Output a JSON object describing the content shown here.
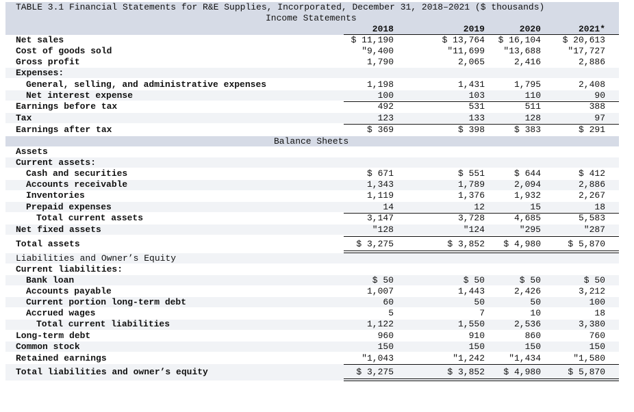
{
  "title": "TABLE 3.1 Financial Statements for R&E Supplies, Incorporated, December 31, 2018–2021 ($ thousands)",
  "income_heading": "Income Statements",
  "balance_heading": "Balance Sheets",
  "years": [
    "2018",
    "2019",
    "2020",
    "2021*"
  ],
  "income": [
    {
      "label": "Net sales",
      "values": [
        "$ 11,190",
        "$ 13,764",
        "$ 16,104",
        "$ 20,613"
      ]
    },
    {
      "label": "Cost of goods sold",
      "values": [
        "\"9,400",
        "\"11,699",
        "\"13,688",
        "\"17,727"
      ]
    },
    {
      "label": "Gross profit",
      "values": [
        "1,790",
        "2,065",
        "2,416",
        "2,886"
      ]
    },
    {
      "label": "Expenses:",
      "values": [
        "",
        "",
        "",
        ""
      ]
    },
    {
      "label": "General, selling, and administrative expenses",
      "values": [
        "1,198",
        "1,431",
        "1,795",
        "2,408"
      ]
    },
    {
      "label": "Net interest expense",
      "values": [
        "100",
        "103",
        "110",
        "90"
      ]
    },
    {
      "label": "Earnings before tax",
      "values": [
        "492",
        "531",
        "511",
        "388"
      ]
    },
    {
      "label": "Tax",
      "values": [
        "123",
        "133",
        "128",
        "97"
      ]
    },
    {
      "label": "Earnings after tax",
      "values": [
        "$ 369",
        "$ 398",
        "$ 383",
        "$ 291"
      ]
    }
  ],
  "assets": [
    {
      "label": "Assets",
      "values": [
        "",
        "",
        "",
        ""
      ]
    },
    {
      "label": "Current assets:",
      "values": [
        "",
        "",
        "",
        ""
      ]
    },
    {
      "label": "Cash and securities",
      "values": [
        "$ 671",
        "$ 551",
        "$ 644",
        "$ 412"
      ]
    },
    {
      "label": "Accounts receivable",
      "values": [
        "1,343",
        "1,789",
        "2,094",
        "2,886"
      ]
    },
    {
      "label": "Inventories",
      "values": [
        "1,119",
        "1,376",
        "1,932",
        "2,267"
      ]
    },
    {
      "label": "Prepaid expenses",
      "values": [
        "14",
        "12",
        "15",
        "18"
      ]
    },
    {
      "label": "Total current assets",
      "values": [
        "3,147",
        "3,728",
        "4,685",
        "5,583"
      ]
    },
    {
      "label": "Net fixed assets",
      "values": [
        "\"128",
        "\"124",
        "\"295",
        "\"287"
      ]
    },
    {
      "label": "Total assets",
      "values": [
        "$ 3,275",
        "$ 3,852",
        "$ 4,980",
        "$ 5,870"
      ]
    }
  ],
  "liabilities": [
    {
      "label": "Liabilities and Owner’s Equity",
      "values": [
        "",
        "",
        "",
        ""
      ]
    },
    {
      "label": "Current liabilities:",
      "values": [
        "",
        "",
        "",
        ""
      ]
    },
    {
      "label": "Bank loan",
      "values": [
        "$ 50",
        "$ 50",
        "$ 50",
        "$ 50"
      ]
    },
    {
      "label": "Accounts payable",
      "values": [
        "1,007",
        "1,443",
        "2,426",
        "3,212"
      ]
    },
    {
      "label": "Current portion long-term debt",
      "values": [
        "60",
        "50",
        "50",
        "100"
      ]
    },
    {
      "label": "Accrued wages",
      "values": [
        "5",
        "7",
        "10",
        "18"
      ]
    },
    {
      "label": "Total current liabilities",
      "values": [
        "1,122",
        "1,550",
        "2,536",
        "3,380"
      ]
    },
    {
      "label": "Long-term debt",
      "values": [
        "960",
        "910",
        "860",
        "760"
      ]
    },
    {
      "label": "Common stock",
      "values": [
        "150",
        "150",
        "150",
        "150"
      ]
    },
    {
      "label": "Retained earnings",
      "values": [
        "\"1,043",
        "\"1,242",
        "\"1,434",
        "\"1,580"
      ]
    },
    {
      "label": "Total liabilities and owner’s equity",
      "values": [
        "$ 3,275",
        "$ 3,852",
        "$ 4,980",
        "$ 5,870"
      ]
    }
  ]
}
